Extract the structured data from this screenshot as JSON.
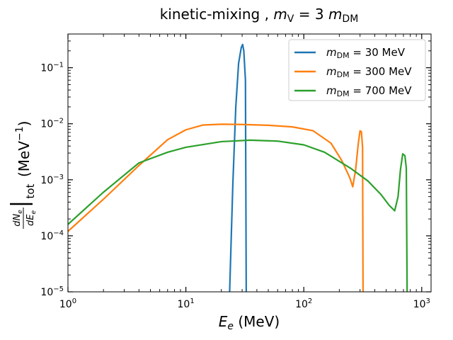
{
  "chart_data": {
    "type": "line",
    "title": {
      "main": "kinetic-mixing ,  ",
      "var": "m",
      "sub": "V",
      "rhs": " = 3 ",
      "var2": "m",
      "sub2": "DM"
    },
    "xlabel": {
      "var": "E",
      "sub": "e",
      "unit": " (MeV)"
    },
    "ylabel": {
      "frac_num": "dN",
      "frac_num_sub": "e",
      "frac_den": "dE",
      "frac_den_sub": "e",
      "bar_sub": "tot",
      "unit": "(MeV",
      "unit_exp": "−1",
      "unit_close": ")"
    },
    "xscale": "log",
    "yscale": "log",
    "xlim": [
      1,
      1200
    ],
    "ylim": [
      1e-05,
      0.4
    ],
    "x_ticks": [
      {
        "value": 1,
        "base": "10",
        "exp": "0"
      },
      {
        "value": 10,
        "base": "10",
        "exp": "1"
      },
      {
        "value": 100,
        "base": "10",
        "exp": "2"
      },
      {
        "value": 1000,
        "base": "10",
        "exp": "3"
      }
    ],
    "y_ticks": [
      {
        "value": 1e-05,
        "base": "10",
        "exp": "−5"
      },
      {
        "value": 0.0001,
        "base": "10",
        "exp": "−4"
      },
      {
        "value": 0.001,
        "base": "10",
        "exp": "−3"
      },
      {
        "value": 0.01,
        "base": "10",
        "exp": "−2"
      },
      {
        "value": 0.1,
        "base": "10",
        "exp": "−1"
      }
    ],
    "legend_position": "top-right",
    "series": [
      {
        "name": "m_DM = 30 MeV",
        "label_var": "m",
        "label_sub": "DM",
        "label_rest": " = 30 MeV",
        "color": "#1f77b4",
        "points": [
          [
            23.5,
            1e-05
          ],
          [
            25,
            0.0008
          ],
          [
            26.5,
            0.02
          ],
          [
            28,
            0.12
          ],
          [
            29.5,
            0.23
          ],
          [
            30.3,
            0.26
          ],
          [
            31,
            0.2
          ],
          [
            32,
            0.06
          ],
          [
            32.5,
            1e-05
          ]
        ]
      },
      {
        "name": "m_DM = 300 MeV",
        "label_var": "m",
        "label_sub": "DM",
        "label_rest": " = 300 MeV",
        "color": "#ff7f0e",
        "points": [
          [
            1,
            0.00012
          ],
          [
            2,
            0.00045
          ],
          [
            4,
            0.0018
          ],
          [
            7,
            0.0052
          ],
          [
            10,
            0.0078
          ],
          [
            14,
            0.0095
          ],
          [
            20,
            0.0098
          ],
          [
            30,
            0.0097
          ],
          [
            50,
            0.0094
          ],
          [
            80,
            0.0088
          ],
          [
            120,
            0.0075
          ],
          [
            170,
            0.0045
          ],
          [
            210,
            0.0022
          ],
          [
            245,
            0.0011
          ],
          [
            260,
            0.00075
          ],
          [
            275,
            0.0015
          ],
          [
            290,
            0.0045
          ],
          [
            300,
            0.0075
          ],
          [
            308,
            0.0072
          ],
          [
            315,
            0.0038
          ],
          [
            318,
            1e-05
          ]
        ]
      },
      {
        "name": "m_DM = 700 MeV",
        "label_var": "m",
        "label_sub": "DM",
        "label_rest": " = 700 MeV",
        "color": "#2ca02c",
        "points": [
          [
            1,
            0.00016
          ],
          [
            2,
            0.0006
          ],
          [
            4,
            0.002
          ],
          [
            7,
            0.0031
          ],
          [
            10,
            0.0038
          ],
          [
            20,
            0.0048
          ],
          [
            35,
            0.0051
          ],
          [
            60,
            0.0049
          ],
          [
            100,
            0.0042
          ],
          [
            150,
            0.0031
          ],
          [
            250,
            0.0016
          ],
          [
            350,
            0.00095
          ],
          [
            450,
            0.00055
          ],
          [
            530,
            0.00035
          ],
          [
            590,
            0.00028
          ],
          [
            630,
            0.0005
          ],
          [
            660,
            0.0015
          ],
          [
            690,
            0.0029
          ],
          [
            720,
            0.0027
          ],
          [
            740,
            0.0016
          ],
          [
            752,
            1e-05
          ]
        ]
      }
    ]
  }
}
